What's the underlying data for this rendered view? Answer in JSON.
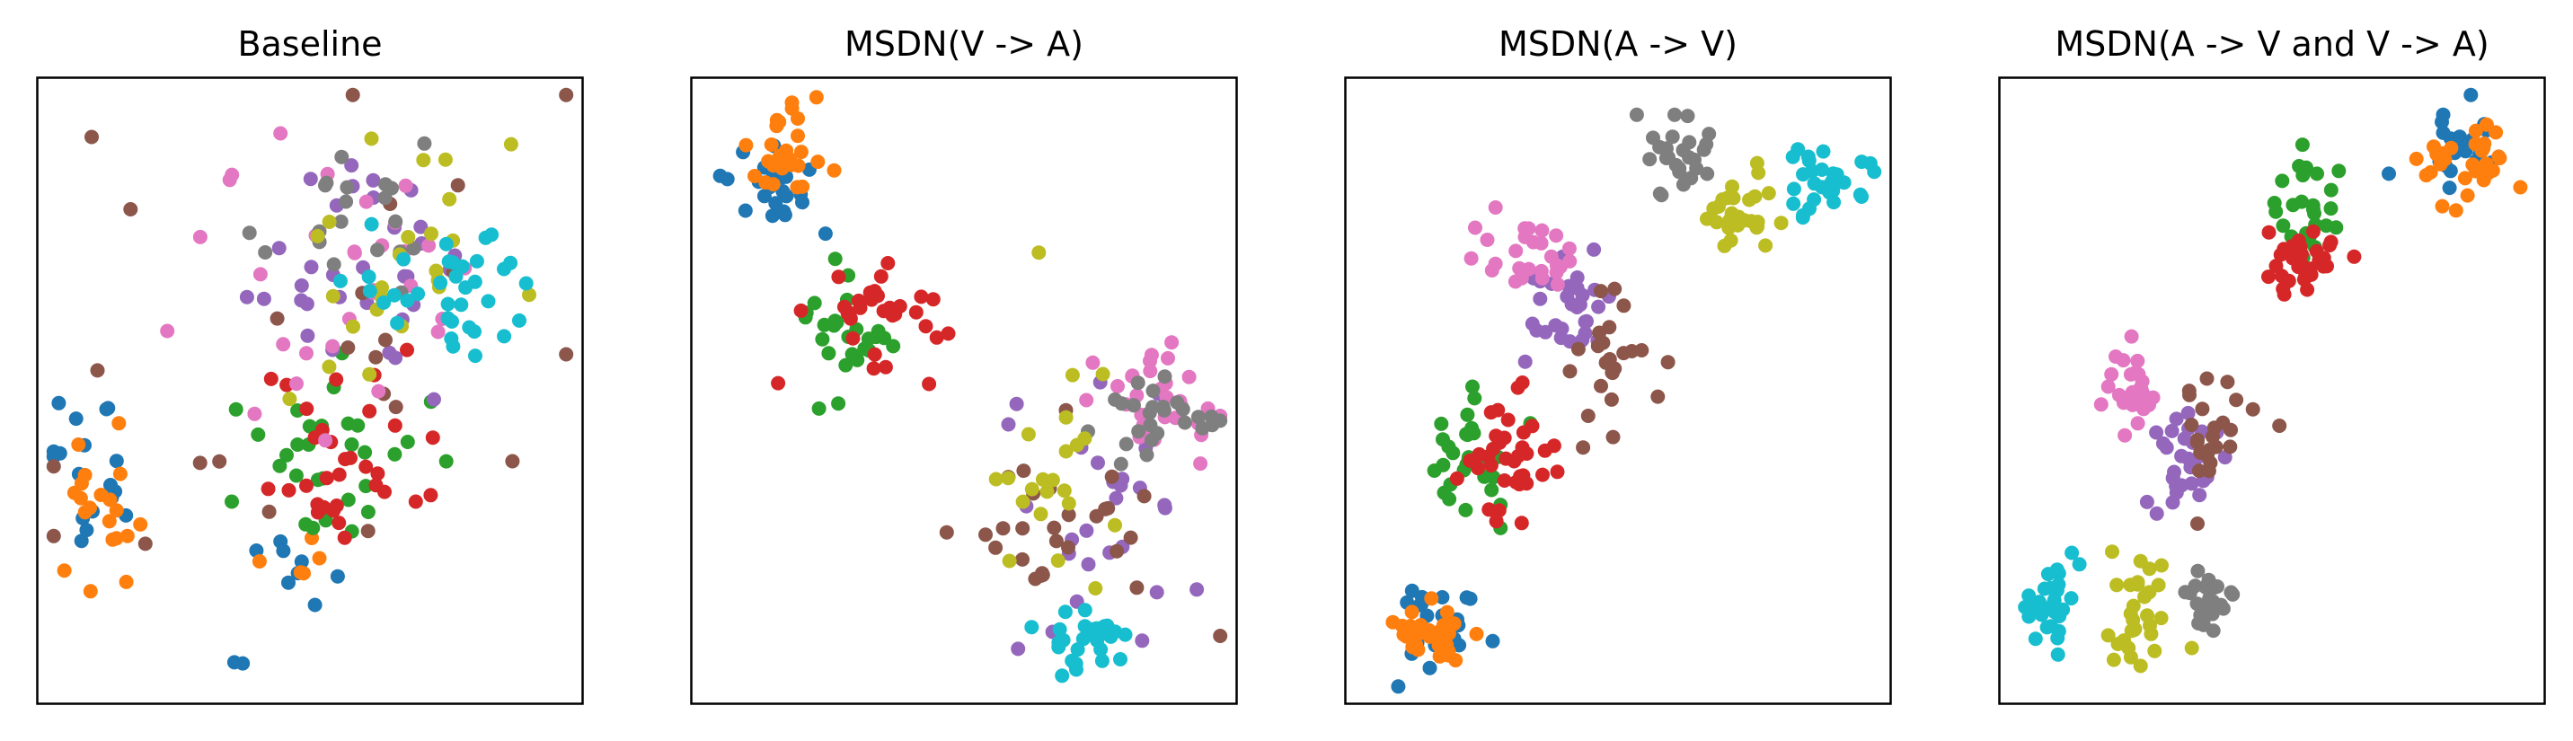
{
  "palette": {
    "c0": "#1f77b4",
    "c1": "#ff7f0e",
    "c2": "#2ca02c",
    "c3": "#d62728",
    "c4": "#9467bd",
    "c5": "#8c564b",
    "c6": "#e377c2",
    "c7": "#7f7f7f",
    "c8": "#bcbd22",
    "c9": "#17becf"
  },
  "chart_data": [
    {
      "type": "scatter",
      "title": "Baseline",
      "xlabel": "",
      "ylabel": "",
      "xlim": [
        0,
        1
      ],
      "ylim": [
        0,
        1
      ],
      "grid": false,
      "ticks": false,
      "legend": "none",
      "clusters": [
        {
          "color": "c0",
          "cx": 0.08,
          "cy": 0.38,
          "sx": 0.04,
          "sy": 0.08,
          "n": 18
        },
        {
          "color": "c0",
          "cx": 0.47,
          "cy": 0.22,
          "sx": 0.04,
          "sy": 0.03,
          "n": 8
        },
        {
          "color": "c0",
          "cx": 0.35,
          "cy": 0.045,
          "sx": 0.02,
          "sy": 0.005,
          "n": 2
        },
        {
          "color": "c1",
          "cx": 0.1,
          "cy": 0.3,
          "sx": 0.04,
          "sy": 0.07,
          "n": 20
        },
        {
          "color": "c1",
          "cx": 0.48,
          "cy": 0.22,
          "sx": 0.04,
          "sy": 0.03,
          "n": 5
        },
        {
          "color": "c2",
          "cx": 0.5,
          "cy": 0.38,
          "sx": 0.1,
          "sy": 0.08,
          "n": 30
        },
        {
          "color": "c3",
          "cx": 0.55,
          "cy": 0.38,
          "sx": 0.08,
          "sy": 0.07,
          "n": 32
        },
        {
          "color": "c4",
          "cx": 0.55,
          "cy": 0.73,
          "sx": 0.13,
          "sy": 0.1,
          "n": 32
        },
        {
          "color": "c5",
          "cx": 0.5,
          "cy": 0.55,
          "sx": 0.25,
          "sy": 0.2,
          "n": 24
        },
        {
          "color": "c6",
          "cx": 0.58,
          "cy": 0.68,
          "sx": 0.18,
          "sy": 0.15,
          "n": 30
        },
        {
          "color": "c7",
          "cx": 0.6,
          "cy": 0.78,
          "sx": 0.12,
          "sy": 0.06,
          "n": 20
        },
        {
          "color": "c8",
          "cx": 0.67,
          "cy": 0.72,
          "sx": 0.12,
          "sy": 0.1,
          "n": 24
        },
        {
          "color": "c9",
          "cx": 0.77,
          "cy": 0.66,
          "sx": 0.08,
          "sy": 0.06,
          "n": 36
        }
      ]
    },
    {
      "type": "scatter",
      "title": "MSDN(V -> A)",
      "xlabel": "",
      "ylabel": "",
      "xlim": [
        0,
        1
      ],
      "ylim": [
        0,
        1
      ],
      "grid": false,
      "ticks": false,
      "legend": "none",
      "clusters": [
        {
          "color": "c0",
          "cx": 0.12,
          "cy": 0.84,
          "sx": 0.05,
          "sy": 0.05,
          "n": 24
        },
        {
          "color": "c1",
          "cx": 0.16,
          "cy": 0.89,
          "sx": 0.035,
          "sy": 0.04,
          "n": 28
        },
        {
          "color": "c2",
          "cx": 0.26,
          "cy": 0.57,
          "sx": 0.05,
          "sy": 0.05,
          "n": 26
        },
        {
          "color": "c3",
          "cx": 0.34,
          "cy": 0.62,
          "sx": 0.06,
          "sy": 0.04,
          "n": 32
        },
        {
          "color": "c4",
          "cx": 0.72,
          "cy": 0.3,
          "sx": 0.1,
          "sy": 0.1,
          "n": 30
        },
        {
          "color": "c5",
          "cx": 0.7,
          "cy": 0.26,
          "sx": 0.1,
          "sy": 0.08,
          "n": 28
        },
        {
          "color": "c6",
          "cx": 0.87,
          "cy": 0.48,
          "sx": 0.06,
          "sy": 0.04,
          "n": 30
        },
        {
          "color": "c7",
          "cx": 0.85,
          "cy": 0.44,
          "sx": 0.06,
          "sy": 0.04,
          "n": 26
        },
        {
          "color": "c8",
          "cx": 0.67,
          "cy": 0.36,
          "sx": 0.06,
          "sy": 0.1,
          "n": 22
        },
        {
          "color": "c9",
          "cx": 0.74,
          "cy": 0.09,
          "sx": 0.04,
          "sy": 0.03,
          "n": 28
        }
      ]
    },
    {
      "type": "scatter",
      "title": "MSDN(A -> V)",
      "xlabel": "",
      "ylabel": "",
      "xlim": [
        0,
        1
      ],
      "ylim": [
        0,
        1
      ],
      "grid": false,
      "ticks": false,
      "legend": "none",
      "clusters": [
        {
          "color": "c0",
          "cx": 0.17,
          "cy": 0.12,
          "sx": 0.06,
          "sy": 0.04,
          "n": 24
        },
        {
          "color": "c1",
          "cx": 0.14,
          "cy": 0.1,
          "sx": 0.04,
          "sy": 0.03,
          "n": 30
        },
        {
          "color": "c2",
          "cx": 0.21,
          "cy": 0.38,
          "sx": 0.04,
          "sy": 0.06,
          "n": 30
        },
        {
          "color": "c3",
          "cx": 0.29,
          "cy": 0.39,
          "sx": 0.04,
          "sy": 0.05,
          "n": 36
        },
        {
          "color": "c4",
          "cx": 0.43,
          "cy": 0.65,
          "sx": 0.05,
          "sy": 0.04,
          "n": 30
        },
        {
          "color": "c5",
          "cx": 0.47,
          "cy": 0.55,
          "sx": 0.04,
          "sy": 0.06,
          "n": 24
        },
        {
          "color": "c6",
          "cx": 0.33,
          "cy": 0.72,
          "sx": 0.04,
          "sy": 0.03,
          "n": 28
        },
        {
          "color": "c7",
          "cx": 0.61,
          "cy": 0.89,
          "sx": 0.03,
          "sy": 0.03,
          "n": 26
        },
        {
          "color": "c8",
          "cx": 0.74,
          "cy": 0.8,
          "sx": 0.04,
          "sy": 0.03,
          "n": 28
        },
        {
          "color": "c9",
          "cx": 0.89,
          "cy": 0.85,
          "sx": 0.04,
          "sy": 0.03,
          "n": 30
        }
      ]
    },
    {
      "type": "scatter",
      "title": "MSDN(A -> V and V -> A)",
      "xlabel": "",
      "ylabel": "",
      "xlim": [
        0,
        1
      ],
      "ylim": [
        0,
        1
      ],
      "grid": false,
      "ticks": false,
      "legend": "none",
      "clusters": [
        {
          "color": "c0",
          "cx": 0.86,
          "cy": 0.9,
          "sx": 0.05,
          "sy": 0.04,
          "n": 24
        },
        {
          "color": "c1",
          "cx": 0.87,
          "cy": 0.88,
          "sx": 0.05,
          "sy": 0.035,
          "n": 30
        },
        {
          "color": "c2",
          "cx": 0.57,
          "cy": 0.79,
          "sx": 0.03,
          "sy": 0.04,
          "n": 26
        },
        {
          "color": "c3",
          "cx": 0.56,
          "cy": 0.73,
          "sx": 0.04,
          "sy": 0.03,
          "n": 36
        },
        {
          "color": "c4",
          "cx": 0.32,
          "cy": 0.4,
          "sx": 0.04,
          "sy": 0.05,
          "n": 32
        },
        {
          "color": "c5",
          "cx": 0.38,
          "cy": 0.42,
          "sx": 0.04,
          "sy": 0.06,
          "n": 24
        },
        {
          "color": "c6",
          "cx": 0.23,
          "cy": 0.5,
          "sx": 0.03,
          "sy": 0.04,
          "n": 28
        },
        {
          "color": "c7",
          "cx": 0.38,
          "cy": 0.15,
          "sx": 0.03,
          "sy": 0.03,
          "n": 26
        },
        {
          "color": "c8",
          "cx": 0.24,
          "cy": 0.13,
          "sx": 0.03,
          "sy": 0.05,
          "n": 30
        },
        {
          "color": "c9",
          "cx": 0.08,
          "cy": 0.15,
          "sx": 0.03,
          "sy": 0.04,
          "n": 30
        }
      ]
    }
  ]
}
